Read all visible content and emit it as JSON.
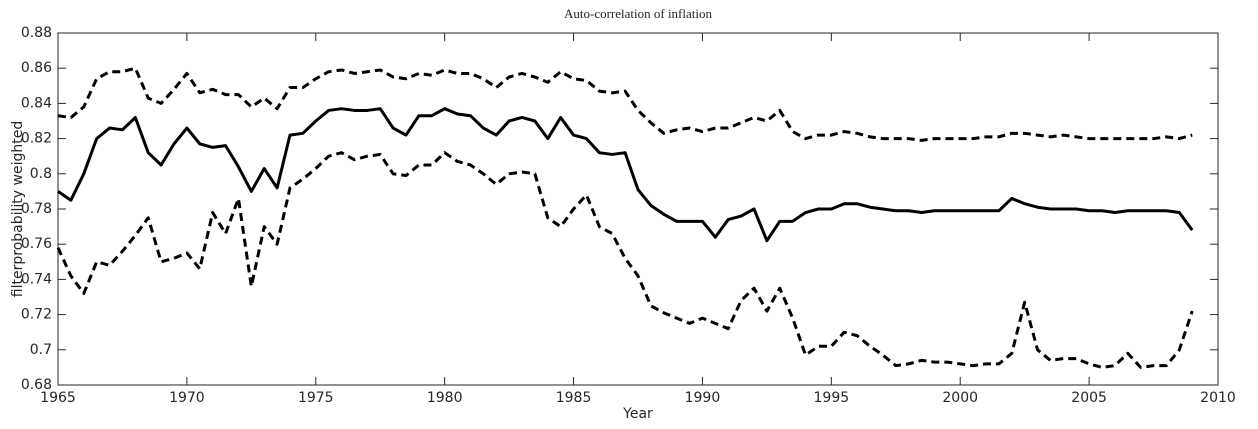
{
  "chart_data": {
    "type": "line",
    "title": "Auto-correlation of inflation",
    "xlabel": "Year",
    "ylabel": "filterprobability weighted",
    "x": [
      1965,
      1965.5,
      1966,
      1966.5,
      1967,
      1967.5,
      1968,
      1968.5,
      1969,
      1969.5,
      1970,
      1970.5,
      1971,
      1971.5,
      1972,
      1972.5,
      1973,
      1973.5,
      1974,
      1974.5,
      1975,
      1975.5,
      1976,
      1976.5,
      1977,
      1977.5,
      1978,
      1978.5,
      1979,
      1979.5,
      1980,
      1980.5,
      1981,
      1981.5,
      1982,
      1982.5,
      1983,
      1983.5,
      1984,
      1984.5,
      1985,
      1985.5,
      1986,
      1986.5,
      1987,
      1987.5,
      1988,
      1988.5,
      1989,
      1989.5,
      1990,
      1990.5,
      1991,
      1991.5,
      1992,
      1992.5,
      1993,
      1993.5,
      1994,
      1994.5,
      1995,
      1995.5,
      1996,
      1996.5,
      1997,
      1997.5,
      1998,
      1998.5,
      1999,
      1999.5,
      2000,
      2000.5,
      2001,
      2001.5,
      2002,
      2002.5,
      2003,
      2003.5,
      2004,
      2004.5,
      2005,
      2005.5,
      2006,
      2006.5,
      2007,
      2007.5,
      2008,
      2008.5,
      2009
    ],
    "series": [
      {
        "color": "#000000",
        "line_style": "solid",
        "values": [
          0.79,
          0.785,
          0.8,
          0.82,
          0.826,
          0.825,
          0.832,
          0.812,
          0.805,
          0.817,
          0.826,
          0.817,
          0.815,
          0.816,
          0.804,
          0.79,
          0.803,
          0.792,
          0.822,
          0.823,
          0.83,
          0.836,
          0.837,
          0.836,
          0.836,
          0.837,
          0.826,
          0.822,
          0.833,
          0.833,
          0.837,
          0.834,
          0.833,
          0.826,
          0.822,
          0.83,
          0.832,
          0.83,
          0.82,
          0.832,
          0.822,
          0.82,
          0.812,
          0.811,
          0.812,
          0.791,
          0.782,
          0.777,
          0.773,
          0.773,
          0.773,
          0.764,
          0.774,
          0.776,
          0.78,
          0.762,
          0.773,
          0.773,
          0.778,
          0.78,
          0.78,
          0.783,
          0.783,
          0.781,
          0.78,
          0.779,
          0.779,
          0.778,
          0.779,
          0.779,
          0.779,
          0.779,
          0.779,
          0.779,
          0.786,
          0.783,
          0.781,
          0.78,
          0.78,
          0.78,
          0.779,
          0.779,
          0.778,
          0.779,
          0.779,
          0.779,
          0.779,
          0.778,
          0.768
        ]
      },
      {
        "color": "#000000",
        "line_style": "dashed",
        "values": [
          0.833,
          0.832,
          0.838,
          0.854,
          0.858,
          0.858,
          0.86,
          0.843,
          0.84,
          0.848,
          0.857,
          0.846,
          0.848,
          0.845,
          0.845,
          0.838,
          0.843,
          0.837,
          0.849,
          0.849,
          0.854,
          0.858,
          0.859,
          0.857,
          0.858,
          0.859,
          0.855,
          0.854,
          0.857,
          0.856,
          0.859,
          0.857,
          0.857,
          0.854,
          0.849,
          0.855,
          0.857,
          0.855,
          0.852,
          0.858,
          0.854,
          0.853,
          0.847,
          0.846,
          0.847,
          0.836,
          0.829,
          0.823,
          0.825,
          0.826,
          0.824,
          0.826,
          0.826,
          0.829,
          0.832,
          0.83,
          0.836,
          0.824,
          0.82,
          0.822,
          0.822,
          0.824,
          0.823,
          0.821,
          0.82,
          0.82,
          0.82,
          0.819,
          0.82,
          0.82,
          0.82,
          0.82,
          0.821,
          0.821,
          0.823,
          0.823,
          0.822,
          0.821,
          0.822,
          0.821,
          0.82,
          0.82,
          0.82,
          0.82,
          0.82,
          0.82,
          0.821,
          0.82,
          0.822
        ]
      },
      {
        "color": "#000000",
        "line_style": "dashed",
        "values": [
          0.758,
          0.742,
          0.732,
          0.75,
          0.748,
          0.756,
          0.765,
          0.775,
          0.75,
          0.752,
          0.755,
          0.746,
          0.778,
          0.766,
          0.786,
          0.736,
          0.77,
          0.76,
          0.792,
          0.797,
          0.803,
          0.81,
          0.812,
          0.808,
          0.81,
          0.811,
          0.8,
          0.799,
          0.805,
          0.805,
          0.812,
          0.807,
          0.805,
          0.8,
          0.794,
          0.8,
          0.801,
          0.8,
          0.775,
          0.77,
          0.78,
          0.788,
          0.77,
          0.766,
          0.752,
          0.742,
          0.725,
          0.721,
          0.718,
          0.715,
          0.718,
          0.715,
          0.712,
          0.728,
          0.735,
          0.722,
          0.735,
          0.718,
          0.697,
          0.702,
          0.702,
          0.71,
          0.708,
          0.702,
          0.697,
          0.691,
          0.692,
          0.694,
          0.693,
          0.693,
          0.692,
          0.691,
          0.692,
          0.692,
          0.698,
          0.727,
          0.7,
          0.694,
          0.695,
          0.695,
          0.692,
          0.69,
          0.691,
          0.698,
          0.69,
          0.691,
          0.691,
          0.7,
          0.722
        ]
      }
    ],
    "xlim": [
      1965,
      2010
    ],
    "xticks": [
      1965,
      1970,
      1975,
      1980,
      1985,
      1990,
      1995,
      2000,
      2005,
      2010
    ],
    "ylim": [
      0.68,
      0.88
    ],
    "yticks": [
      0.68,
      0.7,
      0.72,
      0.74,
      0.76,
      0.78,
      0.8,
      0.82,
      0.84,
      0.86,
      0.88
    ],
    "grid": false
  }
}
